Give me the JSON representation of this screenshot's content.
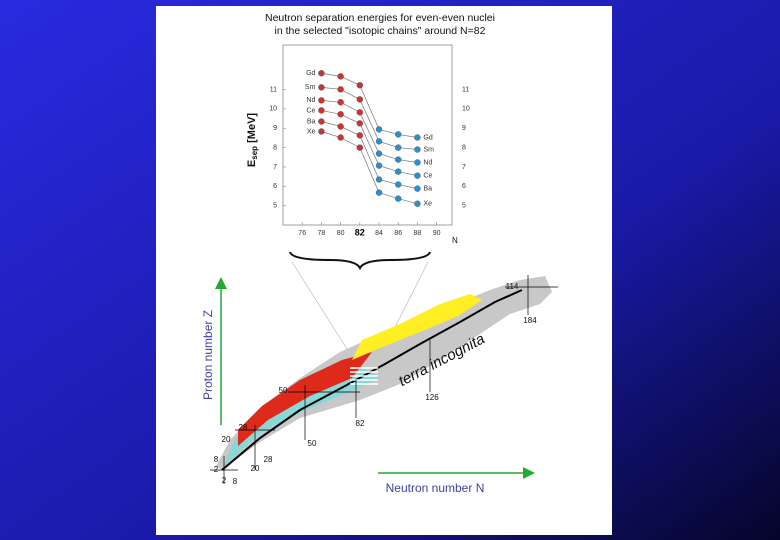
{
  "chart_data": {
    "type": "line",
    "title": "Neutron separation energies for even-even nuclei",
    "subtitle": "in the selected \"isotopic chains\" around N=82",
    "ylabel": [
      "E",
      "sep",
      " [MeV]"
    ],
    "xlabel": "N",
    "x": [
      78,
      80,
      82,
      84,
      86,
      88
    ],
    "point_colors": [
      "#cc3333",
      "#cc3333",
      "#cc3333",
      "#2a8fd0",
      "#2a8fd0",
      "#2a8fd0"
    ],
    "line_color": "#777777",
    "highlight_x": 82,
    "series": [
      {
        "name": "Gd",
        "values": [
          11.84,
          11.68,
          11.22,
          8.94,
          8.68,
          8.52
        ]
      },
      {
        "name": "Sm",
        "values": [
          11.11,
          11.01,
          10.49,
          8.32,
          8.0,
          7.9
        ]
      },
      {
        "name": "Nd",
        "values": [
          10.44,
          10.34,
          9.82,
          7.69,
          7.38,
          7.23
        ]
      },
      {
        "name": "Ce",
        "values": [
          9.92,
          9.72,
          9.25,
          7.07,
          6.76,
          6.55
        ]
      },
      {
        "name": "Ba",
        "values": [
          9.35,
          9.09,
          8.63,
          6.35,
          6.09,
          5.88
        ]
      },
      {
        "name": "Xe",
        "values": [
          8.83,
          8.52,
          8.0,
          5.67,
          5.36,
          5.1
        ]
      }
    ],
    "xlim": [
      74,
      91.6
    ],
    "xticks": [
      76,
      78,
      80,
      82,
      84,
      86,
      88,
      90
    ],
    "ylim": [
      4,
      13.3
    ],
    "yticks": [
      5,
      6,
      7,
      8,
      9,
      10,
      11
    ]
  },
  "diagram": {
    "terra": "terra incognita",
    "z_axis": "Proton number Z",
    "n_axis": "Neutron number N",
    "magic": [
      "2",
      "2",
      "8",
      "8",
      "20",
      "20",
      "28",
      "28",
      "50",
      "50",
      "82",
      "126",
      "114",
      "184"
    ]
  }
}
